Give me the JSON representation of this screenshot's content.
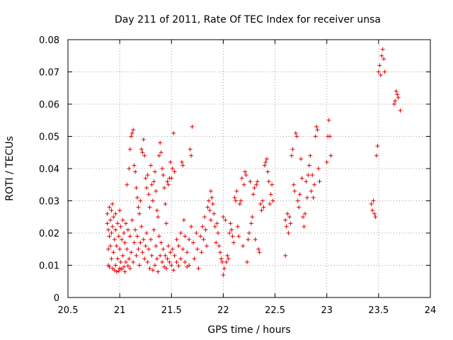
{
  "chart_data": {
    "type": "scatter",
    "title": "Day 211 of 2011, Rate Of TEC Index for receiver unsa",
    "xlabel": "GPS time / hours",
    "ylabel": "ROTI / TECUs",
    "xlim": [
      20.5,
      24
    ],
    "ylim": [
      0,
      0.08
    ],
    "xticks": [
      20.5,
      21,
      21.5,
      22,
      22.5,
      23,
      23.5,
      24
    ],
    "yticks": [
      0,
      0.01,
      0.02,
      0.03,
      0.04,
      0.05,
      0.06,
      0.07,
      0.08
    ],
    "xtick_labels": [
      "20.5",
      "21",
      "21.5",
      "22",
      "22.5",
      "23",
      "23.5",
      "24"
    ],
    "ytick_labels": [
      "0",
      "0.01",
      "0.02",
      "0.03",
      "0.04",
      "0.05",
      "0.06",
      "0.07",
      "0.08"
    ],
    "grid": true,
    "marker": "plus",
    "color": "#e00000",
    "series": [
      {
        "points": [
          [
            20.88,
            0.023
          ],
          [
            20.88,
            0.026
          ],
          [
            20.89,
            0.021
          ],
          [
            20.89,
            0.015
          ],
          [
            20.89,
            0.01
          ],
          [
            20.9,
            0.028
          ],
          [
            20.9,
            0.019
          ],
          [
            20.9,
            0.0095
          ],
          [
            20.91,
            0.024
          ],
          [
            20.91,
            0.016
          ],
          [
            20.92,
            0.027
          ],
          [
            20.92,
            0.02
          ],
          [
            20.92,
            0.012
          ],
          [
            20.93,
            0.029
          ],
          [
            20.93,
            0.022
          ],
          [
            20.93,
            0.009
          ],
          [
            20.94,
            0.025
          ],
          [
            20.94,
            0.014
          ],
          [
            20.95,
            0.018
          ],
          [
            20.95,
            0.0085
          ],
          [
            20.96,
            0.026
          ],
          [
            20.96,
            0.021
          ],
          [
            20.96,
            0.01
          ],
          [
            20.97,
            0.016
          ],
          [
            20.97,
            0.008
          ],
          [
            20.98,
            0.023
          ],
          [
            20.98,
            0.012
          ],
          [
            20.99,
            0.019
          ],
          [
            20.99,
            0.0082
          ],
          [
            21.0,
            0.027
          ],
          [
            21.0,
            0.015
          ],
          [
            21.0,
            0.009
          ],
          [
            21.01,
            0.022
          ],
          [
            21.01,
            0.011
          ],
          [
            21.02,
            0.018
          ],
          [
            21.02,
            0.0088
          ],
          [
            21.03,
            0.024
          ],
          [
            21.03,
            0.013
          ],
          [
            21.04,
            0.02
          ],
          [
            21.04,
            0.0095
          ],
          [
            21.05,
            0.017
          ],
          [
            21.05,
            0.008
          ],
          [
            21.06,
            0.023
          ],
          [
            21.06,
            0.011
          ],
          [
            21.07,
            0.015
          ],
          [
            21.07,
            0.035
          ],
          [
            21.08,
            0.021
          ],
          [
            21.08,
            0.0098
          ],
          [
            21.09,
            0.04
          ],
          [
            21.09,
            0.012
          ],
          [
            21.1,
            0.046
          ],
          [
            21.1,
            0.019
          ],
          [
            21.1,
            0.009
          ],
          [
            21.11,
            0.05
          ],
          [
            21.11,
            0.014
          ],
          [
            21.12,
            0.051
          ],
          [
            21.12,
            0.024
          ],
          [
            21.13,
            0.052
          ],
          [
            21.13,
            0.011
          ],
          [
            21.14,
            0.041
          ],
          [
            21.14,
            0.017
          ],
          [
            21.15,
            0.039
          ],
          [
            21.15,
            0.021
          ],
          [
            21.16,
            0.034
          ],
          [
            21.16,
            0.013
          ],
          [
            21.17,
            0.031
          ],
          [
            21.17,
            0.019
          ],
          [
            21.18,
            0.028
          ],
          [
            21.18,
            0.015
          ],
          [
            21.19,
            0.026
          ],
          [
            21.19,
            0.01
          ],
          [
            21.2,
            0.03
          ],
          [
            21.2,
            0.017
          ],
          [
            21.21,
            0.046
          ],
          [
            21.21,
            0.022
          ],
          [
            21.22,
            0.045
          ],
          [
            21.22,
            0.014
          ],
          [
            21.23,
            0.049
          ],
          [
            21.23,
            0.018
          ],
          [
            21.24,
            0.044
          ],
          [
            21.24,
            0.012
          ],
          [
            21.25,
            0.037
          ],
          [
            21.25,
            0.016
          ],
          [
            21.26,
            0.034
          ],
          [
            21.26,
            0.02
          ],
          [
            21.27,
            0.038
          ],
          [
            21.27,
            0.011
          ],
          [
            21.28,
            0.032
          ],
          [
            21.28,
            0.015
          ],
          [
            21.29,
            0.028
          ],
          [
            21.29,
            0.009
          ],
          [
            21.3,
            0.041
          ],
          [
            21.3,
            0.018
          ],
          [
            21.31,
            0.035
          ],
          [
            21.31,
            0.013
          ],
          [
            21.32,
            0.03
          ],
          [
            21.32,
            0.0085
          ],
          [
            21.33,
            0.036
          ],
          [
            21.33,
            0.021
          ],
          [
            21.34,
            0.039
          ],
          [
            21.34,
            0.01
          ],
          [
            21.35,
            0.033
          ],
          [
            21.35,
            0.016
          ],
          [
            21.36,
            0.027
          ],
          [
            21.36,
            0.012
          ],
          [
            21.37,
            0.025
          ],
          [
            21.37,
            0.008
          ],
          [
            21.38,
            0.044
          ],
          [
            21.38,
            0.019
          ],
          [
            21.39,
            0.048
          ],
          [
            21.39,
            0.013
          ],
          [
            21.4,
            0.045
          ],
          [
            21.4,
            0.017
          ],
          [
            21.41,
            0.04
          ],
          [
            21.41,
            0.011
          ],
          [
            21.42,
            0.038
          ],
          [
            21.42,
            0.015
          ],
          [
            21.43,
            0.034
          ],
          [
            21.43,
            0.0095
          ],
          [
            21.44,
            0.029
          ],
          [
            21.44,
            0.013
          ],
          [
            21.45,
            0.023
          ],
          [
            21.45,
            0.009
          ],
          [
            21.46,
            0.036
          ],
          [
            21.46,
            0.012
          ],
          [
            21.47,
            0.035
          ],
          [
            21.47,
            0.016
          ],
          [
            21.48,
            0.037
          ],
          [
            21.48,
            0.011
          ],
          [
            21.49,
            0.042
          ],
          [
            21.49,
            0.014
          ],
          [
            21.5,
            0.037
          ],
          [
            21.5,
            0.01
          ],
          [
            21.51,
            0.04
          ],
          [
            21.51,
            0.015
          ],
          [
            21.52,
            0.051
          ],
          [
            21.52,
            0.0085
          ],
          [
            21.53,
            0.039
          ],
          [
            21.53,
            0.013
          ],
          [
            21.55,
            0.018
          ],
          [
            21.55,
            0.011
          ],
          [
            21.57,
            0.016
          ],
          [
            21.57,
            0.0098
          ],
          [
            21.59,
            0.02
          ],
          [
            21.59,
            0.012
          ],
          [
            21.6,
            0.042
          ],
          [
            21.61,
            0.041
          ],
          [
            21.61,
            0.015
          ],
          [
            21.62,
            0.024
          ],
          [
            21.63,
            0.019
          ],
          [
            21.63,
            0.011
          ],
          [
            21.65,
            0.014
          ],
          [
            21.65,
            0.0095
          ],
          [
            21.67,
            0.018
          ],
          [
            21.67,
            0.01
          ],
          [
            21.68,
            0.046
          ],
          [
            21.69,
            0.044
          ],
          [
            21.69,
            0.022
          ],
          [
            21.7,
            0.053
          ],
          [
            21.71,
            0.017
          ],
          [
            21.72,
            0.012
          ],
          [
            21.74,
            0.02
          ],
          [
            21.75,
            0.015
          ],
          [
            21.76,
            0.009
          ],
          [
            21.78,
            0.019
          ],
          [
            21.79,
            0.014
          ],
          [
            21.8,
            0.022
          ],
          [
            21.81,
            0.018
          ],
          [
            21.82,
            0.025
          ],
          [
            21.83,
            0.021
          ],
          [
            21.84,
            0.016
          ],
          [
            21.85,
            0.028
          ],
          [
            21.86,
            0.03
          ],
          [
            21.87,
            0.027
          ],
          [
            21.88,
            0.024
          ],
          [
            21.88,
            0.033
          ],
          [
            21.89,
            0.031
          ],
          [
            21.9,
            0.029
          ],
          [
            21.91,
            0.026
          ],
          [
            21.92,
            0.022
          ],
          [
            21.93,
            0.017
          ],
          [
            21.94,
            0.023
          ],
          [
            21.95,
            0.02
          ],
          [
            21.96,
            0.016
          ],
          [
            21.97,
            0.014
          ],
          [
            21.98,
            0.012
          ],
          [
            21.99,
            0.011
          ],
          [
            22.0,
            0.007
          ],
          [
            22.0,
            0.025
          ],
          [
            22.01,
            0.009
          ],
          [
            22.02,
            0.024
          ],
          [
            22.03,
            0.011
          ],
          [
            22.04,
            0.013
          ],
          [
            22.05,
            0.012
          ],
          [
            22.06,
            0.02
          ],
          [
            22.07,
            0.023
          ],
          [
            22.08,
            0.021
          ],
          [
            22.09,
            0.019
          ],
          [
            22.1,
            0.017
          ],
          [
            22.11,
            0.031
          ],
          [
            22.12,
            0.03
          ],
          [
            22.13,
            0.033
          ],
          [
            22.14,
            0.022
          ],
          [
            22.15,
            0.019
          ],
          [
            22.16,
            0.029
          ],
          [
            22.17,
            0.03
          ],
          [
            22.18,
            0.037
          ],
          [
            22.19,
            0.016
          ],
          [
            22.2,
            0.035
          ],
          [
            22.21,
            0.039
          ],
          [
            22.22,
            0.038
          ],
          [
            22.23,
            0.011
          ],
          [
            22.24,
            0.018
          ],
          [
            22.25,
            0.02
          ],
          [
            22.26,
            0.036
          ],
          [
            22.27,
            0.023
          ],
          [
            22.28,
            0.025
          ],
          [
            22.29,
            0.032
          ],
          [
            22.3,
            0.034
          ],
          [
            22.31,
            0.018
          ],
          [
            22.32,
            0.035
          ],
          [
            22.33,
            0.036
          ],
          [
            22.34,
            0.015
          ],
          [
            22.35,
            0.014
          ],
          [
            22.36,
            0.029
          ],
          [
            22.37,
            0.027
          ],
          [
            22.38,
            0.03
          ],
          [
            22.39,
            0.028
          ],
          [
            22.4,
            0.041
          ],
          [
            22.41,
            0.042
          ],
          [
            22.42,
            0.043
          ],
          [
            22.43,
            0.039
          ],
          [
            22.44,
            0.036
          ],
          [
            22.45,
            0.029
          ],
          [
            22.46,
            0.032
          ],
          [
            22.47,
            0.035
          ],
          [
            22.48,
            0.03
          ],
          [
            22.6,
            0.013
          ],
          [
            22.6,
            0.024
          ],
          [
            22.61,
            0.022
          ],
          [
            22.62,
            0.026
          ],
          [
            22.63,
            0.02
          ],
          [
            22.64,
            0.025
          ],
          [
            22.65,
            0.023
          ],
          [
            22.66,
            0.044
          ],
          [
            22.67,
            0.046
          ],
          [
            22.68,
            0.035
          ],
          [
            22.69,
            0.033
          ],
          [
            22.7,
            0.051
          ],
          [
            22.71,
            0.05
          ],
          [
            22.72,
            0.03
          ],
          [
            22.73,
            0.028
          ],
          [
            22.74,
            0.032
          ],
          [
            22.75,
            0.043
          ],
          [
            22.76,
            0.037
          ],
          [
            22.77,
            0.025
          ],
          [
            22.78,
            0.022
          ],
          [
            22.79,
            0.026
          ],
          [
            22.8,
            0.036
          ],
          [
            22.81,
            0.031
          ],
          [
            22.82,
            0.038
          ],
          [
            22.83,
            0.041
          ],
          [
            22.84,
            0.044
          ],
          [
            22.85,
            0.033
          ],
          [
            22.86,
            0.038
          ],
          [
            22.87,
            0.031
          ],
          [
            22.88,
            0.035
          ],
          [
            22.89,
            0.05
          ],
          [
            22.9,
            0.053
          ],
          [
            22.91,
            0.052
          ],
          [
            22.92,
            0.04
          ],
          [
            22.93,
            0.036
          ],
          [
            23.0,
            0.042
          ],
          [
            23.01,
            0.05
          ],
          [
            23.02,
            0.055
          ],
          [
            23.03,
            0.05
          ],
          [
            23.04,
            0.044
          ],
          [
            23.43,
            0.029
          ],
          [
            23.44,
            0.027
          ],
          [
            23.45,
            0.03
          ],
          [
            23.46,
            0.026
          ],
          [
            23.47,
            0.025
          ],
          [
            23.48,
            0.044
          ],
          [
            23.49,
            0.047
          ],
          [
            23.5,
            0.07
          ],
          [
            23.51,
            0.072
          ],
          [
            23.52,
            0.069
          ],
          [
            23.53,
            0.075
          ],
          [
            23.54,
            0.077
          ],
          [
            23.55,
            0.074
          ],
          [
            23.56,
            0.07
          ],
          [
            23.65,
            0.06
          ],
          [
            23.66,
            0.061
          ],
          [
            23.67,
            0.064
          ],
          [
            23.68,
            0.063
          ],
          [
            23.69,
            0.062
          ],
          [
            23.71,
            0.058
          ]
        ]
      }
    ]
  }
}
